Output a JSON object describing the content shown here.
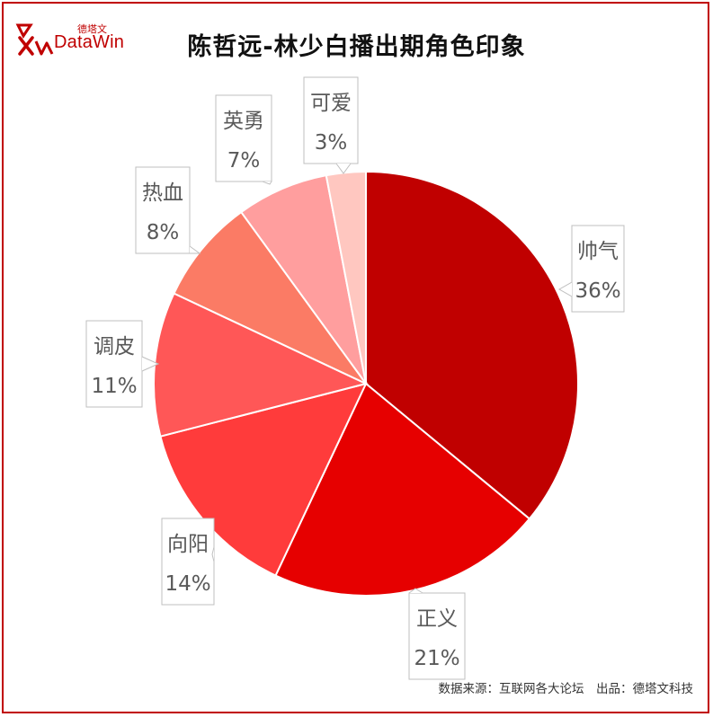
{
  "title": "陈哲远-林少白播出期角色印象",
  "logo": {
    "cn": "德塔文",
    "en": "DataWin"
  },
  "source": "数据来源：互联网各大论坛　出品：德塔文科技",
  "colors": {
    "frame": "#c00000",
    "brand": "#c00000"
  },
  "chart_data": {
    "type": "pie",
    "title": "陈哲远-林少白播出期角色印象",
    "slices": [
      {
        "label": "帅气",
        "value": 36,
        "display": "36%",
        "color": "#c00000"
      },
      {
        "label": "正义",
        "value": 21,
        "display": "21%",
        "color": "#e60000"
      },
      {
        "label": "向阳",
        "value": 14,
        "display": "14%",
        "color": "#ff3b3b"
      },
      {
        "label": "调皮",
        "value": 11,
        "display": "11%",
        "color": "#ff5757"
      },
      {
        "label": "热血",
        "value": 8,
        "display": "8%",
        "color": "#fb7b65"
      },
      {
        "label": "英勇",
        "value": 7,
        "display": "7%",
        "color": "#ff9e9e"
      },
      {
        "label": "可爱",
        "value": 3,
        "display": "3%",
        "color": "#ffc7c0"
      }
    ]
  }
}
